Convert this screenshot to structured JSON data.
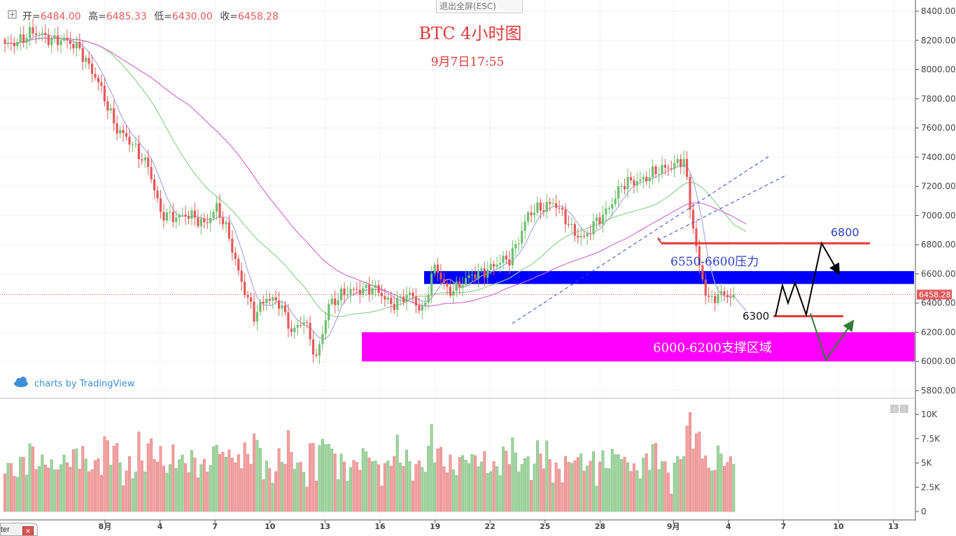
{
  "legend": {
    "expand_icon": "plus-square-icon",
    "open_label": "开=",
    "open_value": "6484.00",
    "high_label": "高=",
    "high_value": "6485.33",
    "low_label": "低=",
    "low_value": "6430.00",
    "close_label": "收=",
    "close_value": "6458.28"
  },
  "toolbar": {
    "exit_fullscreen_label": "退出全屏(ESC)"
  },
  "branding": {
    "text": "charts by TradingView",
    "icon": "cloud-icon"
  },
  "bottom_tab": {
    "label": "ter",
    "close_icon": "x-icon"
  },
  "volume_pane_buttons": [
    "↑",
    "⋮"
  ],
  "colors": {
    "up": "#6fbf6f",
    "down": "#e5595b",
    "title_red": "#e03a3a",
    "resistance_band": "#0000ff",
    "support_band": "#ff00ff",
    "annotation_red": "#e53935",
    "projection_green": "#2e7d32",
    "trendline_blue": "#3344cc",
    "ma_fast": "#a9a9e0",
    "ma_mid": "#8fd18f",
    "ma_slow": "#d36fd3"
  },
  "chart_data": {
    "type": "candlestick",
    "title": "BTC  4小时图",
    "subtitle": "9月7日17:55",
    "y_ticks": [
      "8400.00",
      "8200.00",
      "8000.00",
      "7800.00",
      "7600.00",
      "7400.00",
      "7200.00",
      "7000.00",
      "6800.00",
      "6600.00",
      "6400.00",
      "6200.00",
      "6000.00",
      "5800.00"
    ],
    "ylim": [
      5750,
      8450
    ],
    "x_ticks": [
      "8月",
      "4",
      "7",
      "10",
      "13",
      "16",
      "19",
      "22",
      "25",
      "28",
      "9月",
      "4",
      "7",
      "10",
      "13"
    ],
    "current_price": 6458.28,
    "current_price_label": "6458.28",
    "volume_ticks": [
      "10K",
      "7.5K",
      "5K",
      "2.5K",
      "0"
    ],
    "volume_lim": [
      0,
      10500
    ],
    "anchors": [
      [
        0,
        8150
      ],
      [
        8,
        8250
      ],
      [
        18,
        8200
      ],
      [
        24,
        8150
      ],
      [
        30,
        7900
      ],
      [
        36,
        7600
      ],
      [
        42,
        7450
      ],
      [
        46,
        7350
      ],
      [
        50,
        7000
      ],
      [
        58,
        7000
      ],
      [
        64,
        6950
      ],
      [
        68,
        7050
      ],
      [
        72,
        6850
      ],
      [
        76,
        6550
      ],
      [
        80,
        6300
      ],
      [
        84,
        6450
      ],
      [
        88,
        6400
      ],
      [
        92,
        6200
      ],
      [
        96,
        6300
      ],
      [
        100,
        6000
      ],
      [
        104,
        6400
      ],
      [
        108,
        6450
      ],
      [
        114,
        6500
      ],
      [
        118,
        6500
      ],
      [
        124,
        6400
      ],
      [
        130,
        6450
      ],
      [
        134,
        6350
      ],
      [
        138,
        6650
      ],
      [
        142,
        6480
      ],
      [
        150,
        6580
      ],
      [
        156,
        6650
      ],
      [
        162,
        6700
      ],
      [
        168,
        7000
      ],
      [
        176,
        7100
      ],
      [
        182,
        6900
      ],
      [
        186,
        6850
      ],
      [
        192,
        7000
      ],
      [
        198,
        7200
      ],
      [
        204,
        7250
      ],
      [
        210,
        7300
      ],
      [
        214,
        7350
      ],
      [
        218,
        7380
      ],
      [
        220,
        7050
      ],
      [
        223,
        6650
      ],
      [
        226,
        6420
      ],
      [
        230,
        6450
      ],
      [
        234,
        6458
      ]
    ],
    "resistance_band": {
      "label": "6550-6600压力",
      "low": 6550,
      "high": 6600,
      "from_index": 117
    },
    "support_band": {
      "label": "6000-6200支撑区域",
      "low": 6000,
      "high": 6200,
      "from_index": 100
    },
    "levels": [
      {
        "label": "6800",
        "value": 6810,
        "from_index": 182,
        "to_index": 242
      },
      {
        "label": "6300",
        "value": 6310,
        "from_index": 225,
        "to_index": 236
      }
    ]
  }
}
